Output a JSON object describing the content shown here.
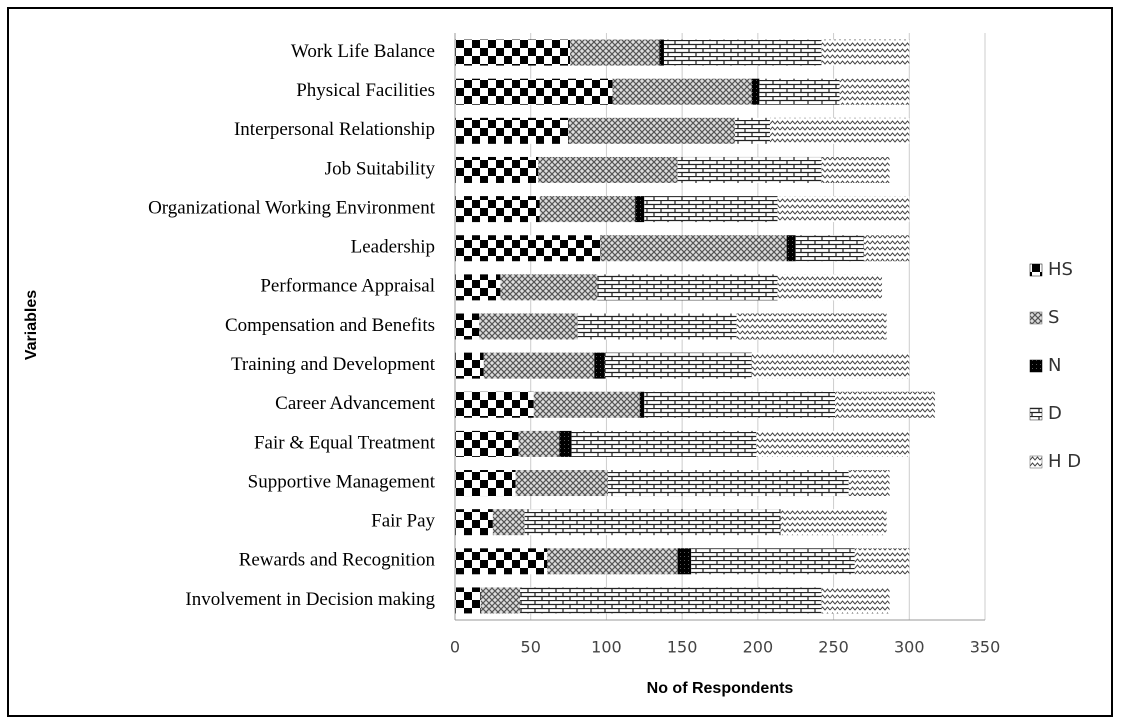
{
  "chart_data": {
    "type": "stacked-barh",
    "x_label": "No of Respondents",
    "y_label": "Variables",
    "categories": [
      "Work Life Balance",
      "Physical Facilities",
      "Interpersonal Relationship",
      "Job Suitability",
      "Organizational Working Environment",
      "Leadership",
      "Performance Appraisal",
      "Compensation and Benefits",
      "Training and Development",
      "Career Advancement",
      "Fair & Equal Treatment",
      "Supportive Management",
      "Fair Pay",
      "Rewards and Recognition",
      "Involvement in Decision making"
    ],
    "series": [
      {
        "name": "HS",
        "color": "#000000",
        "values": [
          76,
          104,
          75,
          55,
          56,
          96,
          30,
          16,
          19,
          52,
          42,
          40,
          25,
          61,
          17
        ]
      },
      {
        "name": "S",
        "color": "#666666",
        "values": [
          59,
          92,
          110,
          92,
          63,
          123,
          64,
          65,
          73,
          70,
          27,
          61,
          21,
          86,
          26
        ]
      },
      {
        "name": "N",
        "color": "#000000",
        "values": [
          3,
          5,
          0,
          0,
          6,
          6,
          0,
          0,
          7,
          3,
          8,
          0,
          0,
          9,
          0
        ]
      },
      {
        "name": "D",
        "color": "#333333",
        "values": [
          104,
          53,
          23,
          95,
          88,
          45,
          119,
          105,
          97,
          126,
          122,
          159,
          169,
          108,
          199
        ]
      },
      {
        "name": "H D",
        "color": "#555555",
        "values": [
          58,
          46,
          92,
          45,
          87,
          30,
          69,
          99,
          104,
          66,
          101,
          27,
          70,
          36,
          45
        ]
      }
    ],
    "xlim": [
      0,
      350
    ],
    "xticks": [
      0,
      50,
      100,
      150,
      200,
      250,
      300,
      350
    ],
    "grid": true,
    "legend": "right"
  }
}
